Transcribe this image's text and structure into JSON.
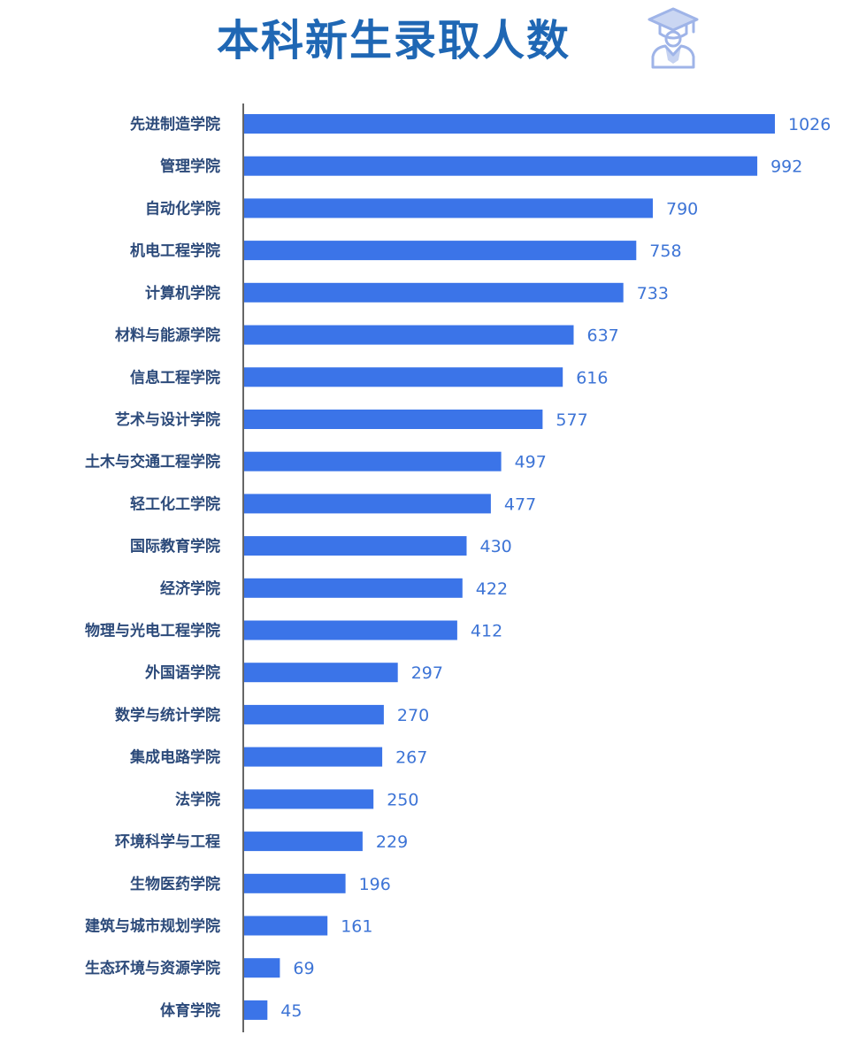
{
  "header": {
    "title": "本科新生录取人数",
    "icon": "graduate-icon"
  },
  "colors": {
    "title": "#1f67b4",
    "bar": "#3b74e8",
    "category_label": "#2c4a7a",
    "value_label": "#3d74d6",
    "icon": "#9fb4e8"
  },
  "chart_data": {
    "type": "bar",
    "orientation": "horizontal",
    "title": "本科新生录取人数",
    "xlabel": "",
    "ylabel": "",
    "grid": false,
    "xlim": [
      0,
      1026
    ],
    "categories": [
      "先进制造学院",
      "管理学院",
      "自动化学院",
      "机电工程学院",
      "计算机学院",
      "材料与能源学院",
      "信息工程学院",
      "艺术与设计学院",
      "土木与交通工程学院",
      "轻工化工学院",
      "国际教育学院",
      "经济学院",
      "物理与光电工程学院",
      "外国语学院",
      "数学与统计学院",
      "集成电路学院",
      "法学院",
      "环境科学与工程",
      "生物医药学院",
      "建筑与城市规划学院",
      "生态环境与资源学院",
      "体育学院"
    ],
    "values": [
      1026,
      992,
      790,
      758,
      733,
      637,
      616,
      577,
      497,
      477,
      430,
      422,
      412,
      297,
      270,
      267,
      250,
      229,
      196,
      161,
      69,
      45
    ],
    "value_labels": [
      "1026",
      "992",
      "790",
      "758",
      "733",
      "637",
      "616",
      "577",
      "497",
      "477",
      "430",
      "422",
      "412",
      "297",
      "270",
      "267",
      "250",
      "229",
      "196",
      "161",
      "69",
      "45"
    ]
  }
}
